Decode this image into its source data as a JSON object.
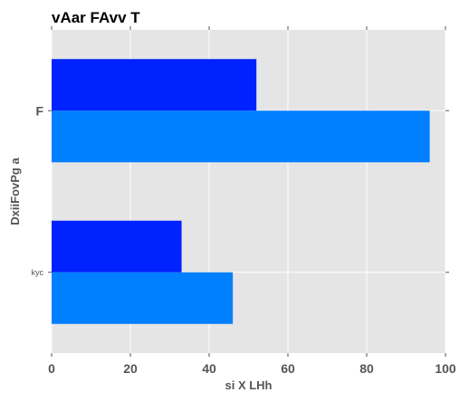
{
  "chart_data": {
    "type": "bar",
    "orientation": "horizontal",
    "title": "vAar FAvv T",
    "xlabel": "si  X LHh",
    "ylabel": "DxiiFovPg a",
    "categories": [
      "F",
      "kyc"
    ],
    "series": [
      {
        "values": [
          96,
          46
        ],
        "color": "#007fff"
      },
      {
        "values": [
          52,
          33
        ],
        "color": "#0022ff"
      }
    ],
    "xlim": [
      0,
      100
    ],
    "xticks": [
      "0",
      "20",
      "40",
      "60",
      "80",
      "100"
    ],
    "grid": true,
    "background": "#e5e5e5",
    "legend": "none"
  }
}
